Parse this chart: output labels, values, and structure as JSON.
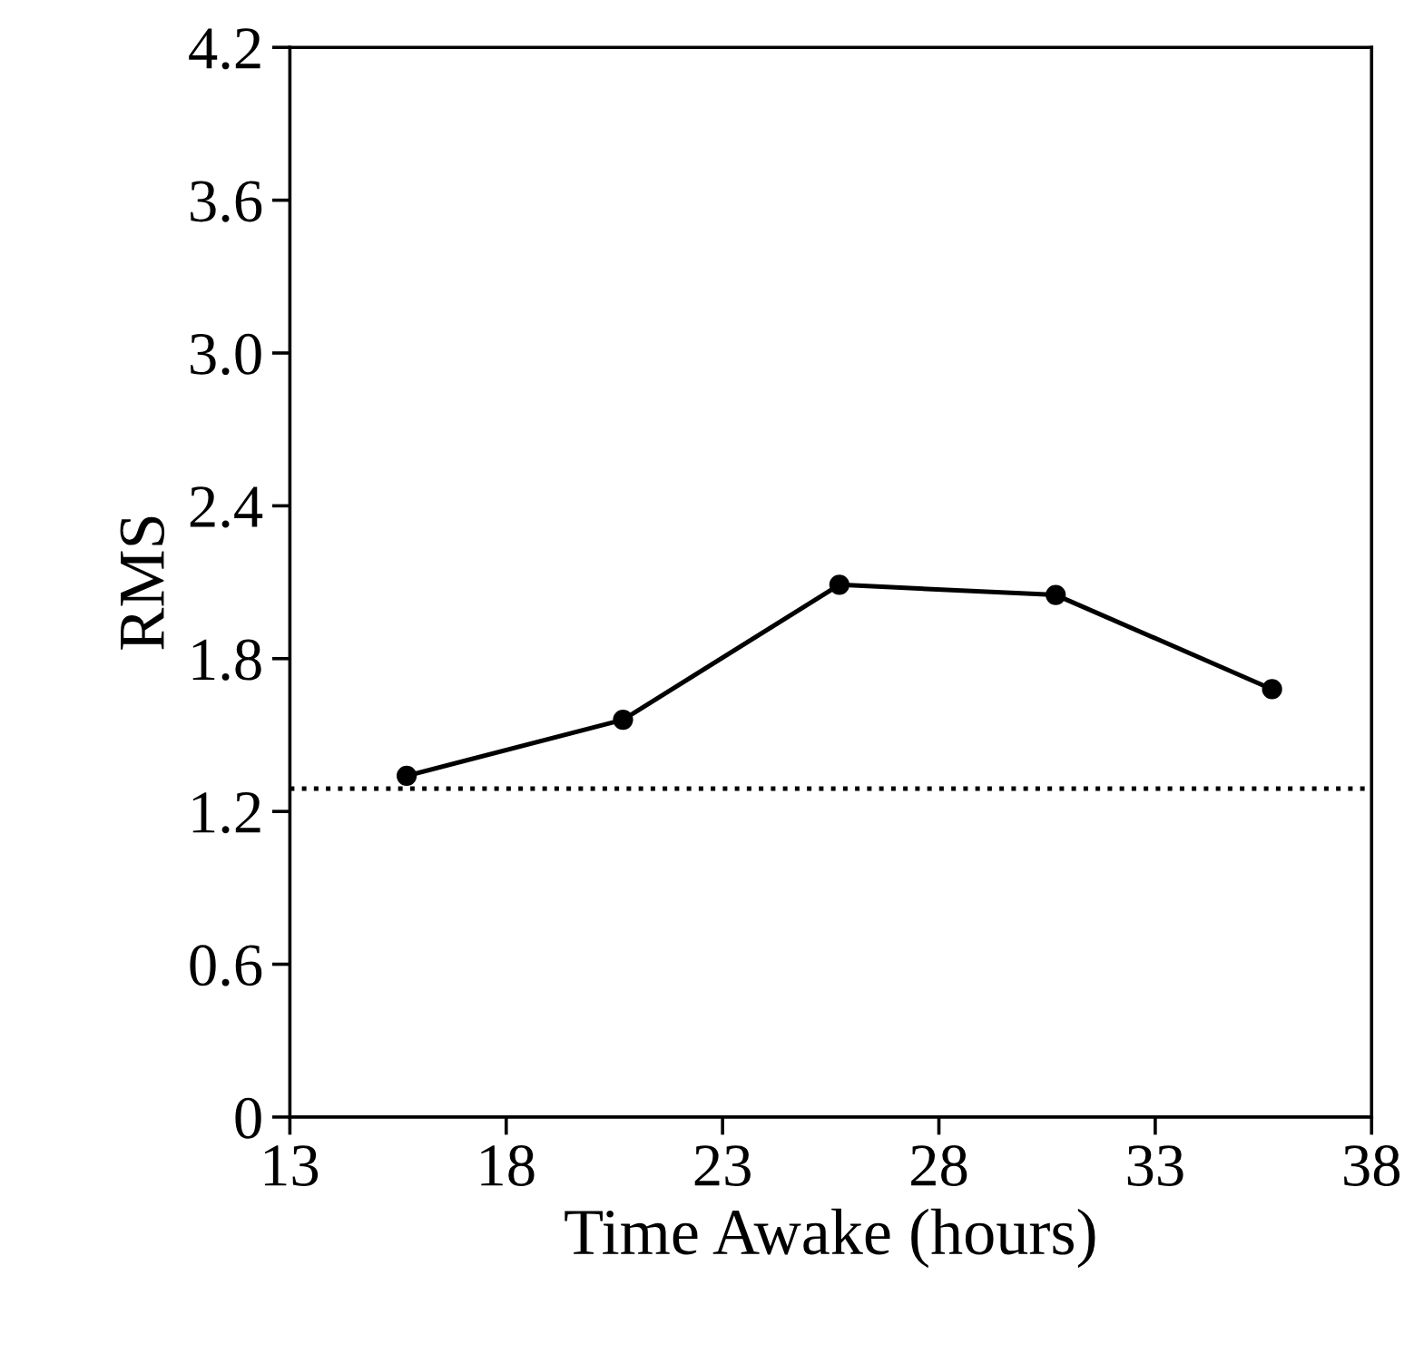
{
  "chart_data": {
    "type": "line",
    "xlabel": "Time Awake (hours)",
    "ylabel": "RMS",
    "x": [
      15.7,
      20.7,
      25.7,
      30.7,
      35.7
    ],
    "series": [
      {
        "color": "#000000",
        "values": [
          1.34,
          1.56,
          2.09,
          2.05,
          1.68
        ]
      }
    ],
    "xlim": [
      13,
      38
    ],
    "xticks": [
      13,
      18,
      23,
      28,
      33,
      38
    ],
    "ylim": [
      0,
      4.2
    ],
    "yticks": [
      {
        "value": 0,
        "label": "0"
      },
      0.6,
      1.2,
      1.8,
      2.4,
      {
        "value": 3.0,
        "label": "3.0"
      },
      3.6,
      4.2
    ],
    "ref_lines": [
      {
        "axis": "y",
        "value": 1.29,
        "color": "#000000",
        "line_style": "dotted"
      }
    ],
    "marker": "circle",
    "line_style": "solid",
    "grid": false,
    "legend": false
  }
}
